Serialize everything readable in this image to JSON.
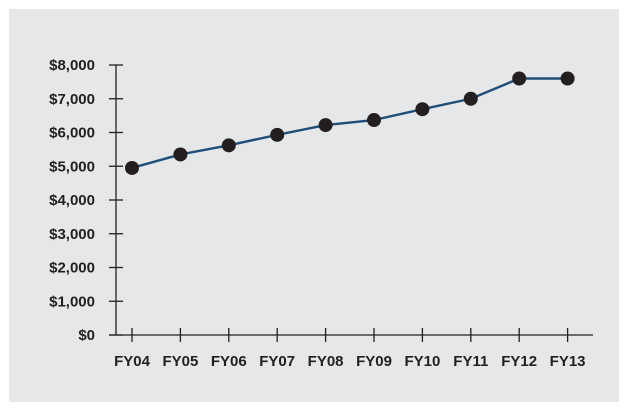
{
  "chart_data": {
    "type": "line",
    "title": "",
    "xlabel": "",
    "ylabel": "",
    "categories": [
      "FY04",
      "FY05",
      "FY06",
      "FY07",
      "FY08",
      "FY09",
      "FY10",
      "FY11",
      "FY12",
      "FY13"
    ],
    "series": [
      {
        "values": [
          4950,
          5350,
          5620,
          5930,
          6220,
          6370,
          6690,
          7000,
          7600,
          7600
        ]
      }
    ],
    "y_ticks": [
      0,
      1000,
      2000,
      3000,
      4000,
      5000,
      6000,
      7000,
      8000
    ],
    "y_tick_labels": [
      "$0",
      "$1,000",
      "$2,000",
      "$3,000",
      "$4,000",
      "$5,000",
      "$6,000",
      "$7,000",
      "$8,000"
    ],
    "ylim": [
      0,
      8000
    ],
    "grid": false,
    "legend": "none",
    "colors": {
      "line": "#1f4e79",
      "marker": "#231f20",
      "axis": "#231f20",
      "background": "#e6e7e8"
    }
  }
}
